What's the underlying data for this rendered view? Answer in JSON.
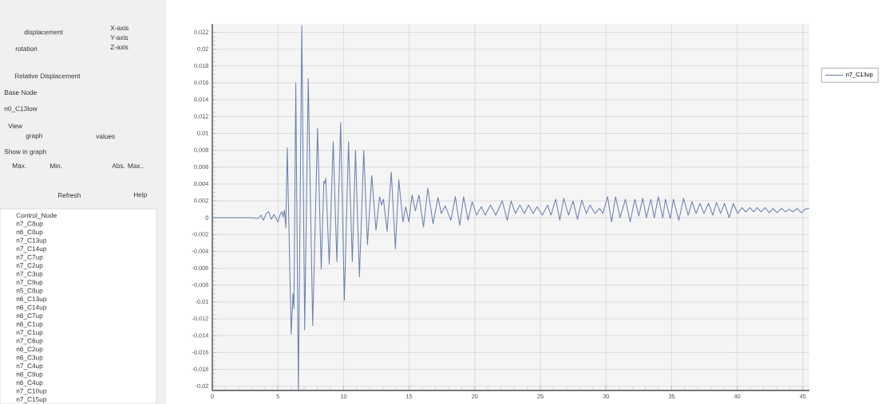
{
  "chart_data": {
    "type": "line",
    "xlim": [
      0,
      45.5
    ],
    "ylim": [
      -0.0205,
      0.023
    ],
    "xticks": [
      0,
      5,
      10,
      15,
      20,
      25,
      30,
      35,
      40,
      45
    ],
    "yticks": [
      {
        "value": -0.02,
        "label": "-0,02"
      },
      {
        "value": -0.018,
        "label": "-0,018"
      },
      {
        "value": -0.016,
        "label": "-0,016"
      },
      {
        "value": -0.014,
        "label": "-0,014"
      },
      {
        "value": -0.012,
        "label": "-0,012"
      },
      {
        "value": -0.01,
        "label": "-0,01"
      },
      {
        "value": -0.008,
        "label": "-0,008"
      },
      {
        "value": -0.006,
        "label": "-0,006"
      },
      {
        "value": -0.004,
        "label": "-0,004"
      },
      {
        "value": -0.002,
        "label": "-0,002"
      },
      0,
      {
        "value": 0.002,
        "label": "0,002"
      },
      {
        "value": 0.004,
        "label": "0,004"
      },
      {
        "value": 0.006,
        "label": "0,006"
      },
      {
        "value": 0.008,
        "label": "0,008"
      },
      {
        "value": 0.01,
        "label": "0,01"
      },
      {
        "value": 0.012,
        "label": "0,012"
      },
      {
        "value": 0.014,
        "label": "0,014"
      },
      {
        "value": 0.016,
        "label": "0,016"
      },
      {
        "value": 0.018,
        "label": "0,018"
      },
      {
        "value": 0.02,
        "label": "0,02"
      },
      {
        "value": 0.022,
        "label": "0,022"
      }
    ],
    "grid": true,
    "legend": "top right",
    "line_style": "solid",
    "marker": "none",
    "series": [
      {
        "name": "n7_C13up",
        "color": "#6b82b0",
        "x": [
          0,
          3,
          3.5,
          3.7,
          3.9,
          4.1,
          4.3,
          4.5,
          4.7,
          5.0,
          5.15,
          5.3,
          5.4,
          5.5,
          5.6,
          5.71,
          6.01,
          6.15,
          6.22,
          6.36,
          6.56,
          6.82,
          7.04,
          7.31,
          7.65,
          8.02,
          8.3,
          8.5,
          8.57,
          8.64,
          8.91,
          9.21,
          9.49,
          9.78,
          10.06,
          10.38,
          10.67,
          10.91,
          11.21,
          11.54,
          11.82,
          12.15,
          12.47,
          12.75,
          12.9,
          13.04,
          13.32,
          13.64,
          13.95,
          14.21,
          14.53,
          14.74,
          14.98,
          15.22,
          15.47,
          15.75,
          16.09,
          16.42,
          16.82,
          17.2,
          17.45,
          17.75,
          18.18,
          18.52,
          18.85,
          19.15,
          19.49,
          19.8,
          20.14,
          20.5,
          20.8,
          21.2,
          21.6,
          22.1,
          22.47,
          22.77,
          23.1,
          23.44,
          23.78,
          24.1,
          24.45,
          24.75,
          25.15,
          25.55,
          25.8,
          26.17,
          26.48,
          26.78,
          27.15,
          27.49,
          27.83,
          28.16,
          28.5,
          28.78,
          29.17,
          29.51,
          29.77,
          30.12,
          30.43,
          30.73,
          31.07,
          31.48,
          31.84,
          32.2,
          32.5,
          32.8,
          33.08,
          33.42,
          33.68,
          33.99,
          34.33,
          34.53,
          34.9,
          35.14,
          35.55,
          35.91,
          36.26,
          36.56,
          36.86,
          37.17,
          37.47,
          37.81,
          38.14,
          38.42,
          38.74,
          39.03,
          39.39,
          39.7,
          40.04,
          40.36,
          40.65,
          40.97,
          41.25,
          41.52,
          41.82,
          42.13,
          42.43,
          42.73,
          43.04,
          43.38,
          43.68,
          43.95,
          44.25,
          44.55,
          44.9,
          45.16,
          45.47
        ],
        "values": [
          0,
          0,
          -0.0001,
          0.0003,
          -0.0003,
          0.0005,
          0.0007,
          -0.0002,
          0.0004,
          -0.0005,
          0.0003,
          0.0007,
          0.0001,
          0.0009,
          -0.0012,
          0.0083,
          -0.0138,
          -0.009,
          -0.0108,
          0.016,
          -0.0205,
          0.0228,
          -0.0133,
          0.0165,
          -0.0128,
          0.0106,
          -0.0061,
          0.0043,
          0.0041,
          0.0047,
          -0.0055,
          0.009,
          -0.0052,
          0.0113,
          -0.0098,
          0.009,
          -0.0052,
          0.008,
          -0.007,
          0.008,
          -0.0032,
          0.005,
          -0.0015,
          0.0025,
          0.0015,
          0.0022,
          -0.0016,
          0.0054,
          -0.0037,
          0.0045,
          -0.0005,
          0.0013,
          -0.0005,
          0.0027,
          0.0008,
          0.0027,
          -0.0011,
          0.0035,
          -0.0007,
          0.0024,
          0.0005,
          0.0014,
          -0.0003,
          0.0025,
          -0.0009,
          0.0025,
          -0.0003,
          0.0019,
          0.0003,
          0.0013,
          0.0003,
          0.0015,
          0.0003,
          0.002,
          -0.0003,
          0.002,
          0.0005,
          0.0015,
          0.0005,
          0.0015,
          0.0005,
          0.0013,
          0.0003,
          0.0015,
          0.0003,
          0.0022,
          -0.0003,
          0.0023,
          0.0003,
          0.002,
          -0.0002,
          0.0021,
          0.0005,
          0.0015,
          0.0005,
          0.0011,
          0.0005,
          0.0025,
          -0.0005,
          0.0025,
          0,
          0.0022,
          -0.0005,
          0.0022,
          0.0002,
          0.0023,
          0,
          0.0022,
          0,
          0.0025,
          0,
          0.0022,
          -0.0001,
          0.0022,
          -0.0003,
          0.0023,
          0.0003,
          0.0019,
          0.0005,
          0.0017,
          0.0005,
          0.0017,
          0.0003,
          0.0018,
          0.0005,
          0.0017,
          0,
          0.0017,
          0.0005,
          0.0012,
          0.0007,
          0.0012,
          0.0007,
          0.0012,
          0.0007,
          0.0012,
          0.0006,
          0.0011,
          0.0006,
          0.0011,
          0.0007,
          0.001,
          0.0007,
          0.0011,
          0.0006,
          0.001,
          0.0011
        ]
      }
    ],
    "annotations": [
      "displacement",
      "rotation",
      "X-axis",
      "Y-axis",
      "Z-axis",
      "Relative Displacement",
      "Base Node",
      "n0_C13low",
      "View",
      "graph",
      "values",
      "Show in graph",
      "Max.",
      "Min.",
      "Abs. Max..",
      "Refresh",
      "Help",
      "Control_Node",
      "n7_C8up",
      "n6_C8up",
      "n7_C13up",
      "n7_C14up",
      "n7_C7up",
      "n7_C2up",
      "n7_C3up",
      "n7_C9up",
      "n5_C8up",
      "n6_C13up",
      "n6_C14up",
      "n6_C7up",
      "n6_C1up",
      "n7_C1up",
      "n7_C6up",
      "n6_C2up",
      "n6_C3up",
      "n7_C4up",
      "n6_C9up",
      "n6_C4up",
      "n7_C10up",
      "n7_C15up"
    ]
  }
}
